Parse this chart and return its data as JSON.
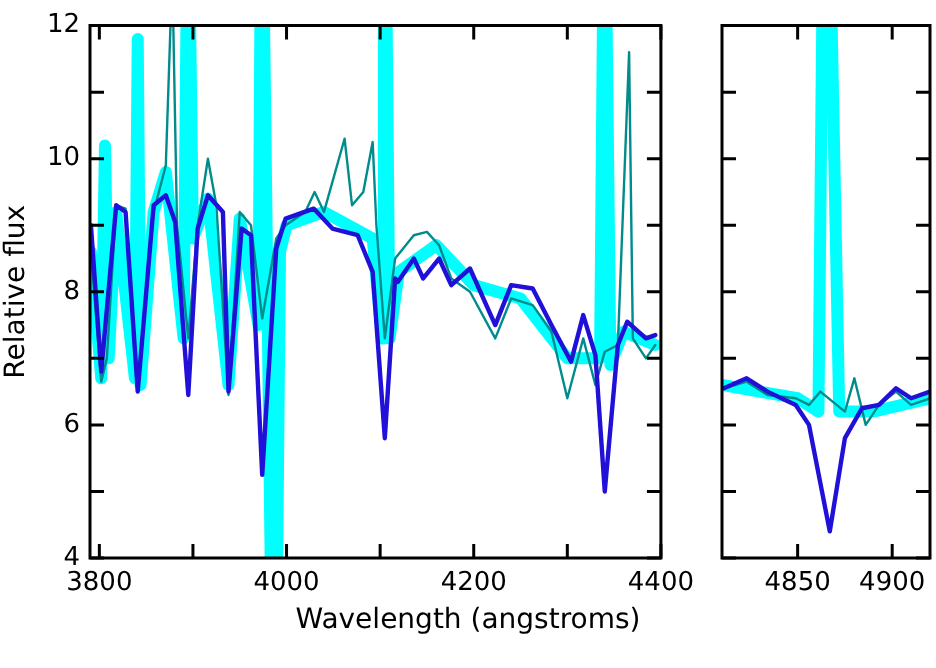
{
  "chart_data": [
    {
      "type": "line",
      "xlabel": "Wavelength (angstroms)",
      "ylabel": "Relative flux",
      "xlim": [
        3790,
        4400
      ],
      "ylim": [
        4,
        12
      ],
      "xticks": [
        3800,
        {
          "value": 3900,
          "label": null
        },
        4000,
        {
          "value": 4100,
          "label": null
        },
        4200,
        {
          "value": 4300,
          "label": null
        },
        4400
      ],
      "yticks": [
        4,
        {
          "value": 5,
          "label": null
        },
        6,
        {
          "value": 7,
          "label": null
        },
        8,
        {
          "value": 9,
          "label": null
        },
        10,
        {
          "value": 11,
          "label": null
        },
        12
      ],
      "grid": false,
      "legend": false,
      "marker": "none",
      "line_style": "solid",
      "series": [
        {
          "color": "#00ffff",
          "x": [
            3791,
            3802,
            3806,
            3810,
            3818,
            3838,
            3841,
            3844,
            3858,
            3871,
            3890,
            3893,
            3897,
            3900,
            3916,
            3938,
            3950,
            3970,
            3972,
            3976,
            3980,
            3983,
            3986,
            3990,
            3993,
            4000,
            4040,
            4092,
            4102,
            4104,
            4107,
            4110,
            4120,
            4160,
            4200,
            4250,
            4300,
            4335,
            4338,
            4342,
            4346,
            4360,
            4394
          ],
          "values": [
            8.6,
            6.7,
            10.2,
            7.0,
            9.2,
            6.7,
            11.8,
            6.6,
            9.2,
            9.8,
            7.3,
            12,
            12,
            8.8,
            9.4,
            6.6,
            9.1,
            7.5,
            12,
            12,
            7.5,
            4,
            7.5,
            4,
            8.6,
            9.0,
            9.2,
            8.8,
            7.3,
            12,
            12,
            7.3,
            8.3,
            8.7,
            8.1,
            7.9,
            7.0,
            7.0,
            12,
            12,
            6.9,
            7.4,
            7.2
          ]
        },
        {
          "color": "#008c8c",
          "x": [
            3791,
            3802,
            3808,
            3818,
            3828,
            3841,
            3858,
            3871,
            3876,
            3879,
            3883,
            3895,
            3905,
            3916,
            3925,
            3938,
            3950,
            3962,
            3974,
            3989,
            3999,
            4020,
            4030,
            4040,
            4062,
            4070,
            4082,
            4092,
            4096,
            4105,
            4116,
            4136,
            4150,
            4163,
            4176,
            4196,
            4223,
            4240,
            4263,
            4283,
            4300,
            4317,
            4330,
            4340,
            4354,
            4366,
            4370,
            4384,
            4394
          ],
          "values": [
            8.6,
            6.65,
            7.0,
            9.3,
            9.25,
            6.6,
            9.2,
            9.9,
            12,
            12,
            9.0,
            7.3,
            9.0,
            10.0,
            9.3,
            6.45,
            9.2,
            9.0,
            7.6,
            8.8,
            9.0,
            9.2,
            9.5,
            9.2,
            10.3,
            9.3,
            9.5,
            10.25,
            9.0,
            7.3,
            8.5,
            8.85,
            8.9,
            8.7,
            8.2,
            8.0,
            7.3,
            7.9,
            7.8,
            7.4,
            6.4,
            7.3,
            6.6,
            7.1,
            7.2,
            11.6,
            7.3,
            7.0,
            7.2
          ]
        },
        {
          "color": "#2010d8",
          "x": [
            3791,
            3802,
            3818,
            3828,
            3841,
            3858,
            3871,
            3881,
            3895,
            3905,
            3916,
            3932,
            3938,
            3952,
            3962,
            3974,
            3989,
            3999,
            4029,
            4049,
            4076,
            4092,
            4105,
            4116,
            4119,
            4136,
            4146,
            4163,
            4176,
            4196,
            4223,
            4240,
            4263,
            4283,
            4304,
            4317,
            4330,
            4340,
            4354,
            4364,
            4384,
            4394
          ],
          "values": [
            9.0,
            6.8,
            9.3,
            9.2,
            6.5,
            9.3,
            9.45,
            9.05,
            6.45,
            8.95,
            9.45,
            9.2,
            6.5,
            8.95,
            8.85,
            5.25,
            8.65,
            9.1,
            9.25,
            8.95,
            8.85,
            8.3,
            5.8,
            8.2,
            8.15,
            8.5,
            8.2,
            8.5,
            8.1,
            8.35,
            7.5,
            8.1,
            8.05,
            7.5,
            6.95,
            7.65,
            7.05,
            5.0,
            7.2,
            7.55,
            7.3,
            7.35
          ]
        }
      ]
    },
    {
      "type": "line",
      "xlim": [
        4810,
        4920
      ],
      "ylim": [
        4,
        12
      ],
      "xticks": [
        4850,
        4900
      ],
      "yticks": [
        4,
        {
          "value": 5,
          "label": null
        },
        6,
        {
          "value": 7,
          "label": null
        },
        8,
        {
          "value": 9,
          "label": null
        },
        10,
        {
          "value": 11,
          "label": null
        },
        12
      ],
      "tick_labels": "x",
      "grid": false,
      "legend": false,
      "marker": "none",
      "line_style": "solid",
      "series": [
        {
          "color": "#00ffff",
          "x": [
            4810,
            4850,
            4861,
            4863,
            4868,
            4872,
            4890,
            4920
          ],
          "values": [
            6.6,
            6.4,
            6.2,
            12,
            12,
            6.2,
            6.2,
            6.4
          ]
        },
        {
          "color": "#008c8c",
          "x": [
            4811,
            4823,
            4834,
            4849,
            4856,
            4862,
            4875,
            4880,
            4886,
            4893,
            4902,
            4910,
            4920
          ],
          "values": [
            6.55,
            6.65,
            6.45,
            6.4,
            6.3,
            6.5,
            6.2,
            6.7,
            6.0,
            6.3,
            6.5,
            6.3,
            6.4
          ]
        },
        {
          "color": "#2010d8",
          "x": [
            4811,
            4823,
            4834,
            4849,
            4856,
            4867,
            4875,
            4884,
            4893,
            4902,
            4910,
            4920
          ],
          "values": [
            6.55,
            6.7,
            6.5,
            6.3,
            6.0,
            4.4,
            5.8,
            6.25,
            6.3,
            6.55,
            6.4,
            6.5
          ]
        }
      ]
    }
  ]
}
